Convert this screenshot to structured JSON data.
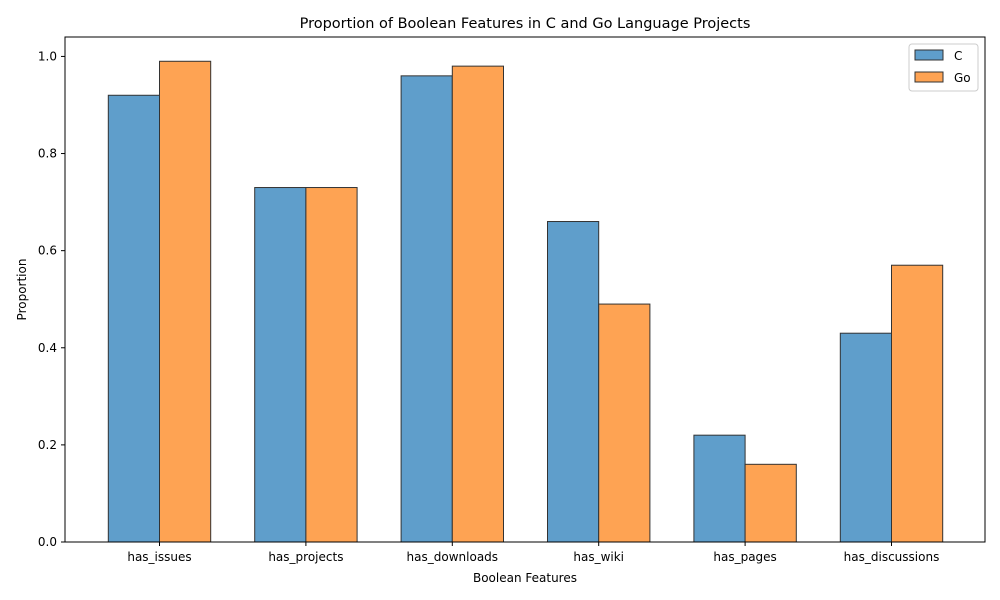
{
  "chart_data": {
    "type": "bar",
    "title": "Proportion of Boolean Features in C and Go Language Projects",
    "xlabel": "Boolean Features",
    "ylabel": "Proportion",
    "categories": [
      "has_issues",
      "has_projects",
      "has_downloads",
      "has_wiki",
      "has_pages",
      "has_discussions"
    ],
    "series": [
      {
        "name": "C",
        "values": [
          0.92,
          0.73,
          0.96,
          0.66,
          0.22,
          0.43
        ],
        "color": "#5f9ecb"
      },
      {
        "name": "Go",
        "values": [
          0.99,
          0.73,
          0.98,
          0.49,
          0.16,
          0.57
        ],
        "color": "#fea353"
      }
    ],
    "ylim": [
      0,
      1.04
    ],
    "yticks": [
      0.0,
      0.2,
      0.4,
      0.6,
      0.8,
      1.0
    ],
    "ytick_labels": [
      "0.0",
      "0.2",
      "0.4",
      "0.6",
      "0.8",
      "1.0"
    ],
    "legend_position": "top-right",
    "grid": false
  }
}
